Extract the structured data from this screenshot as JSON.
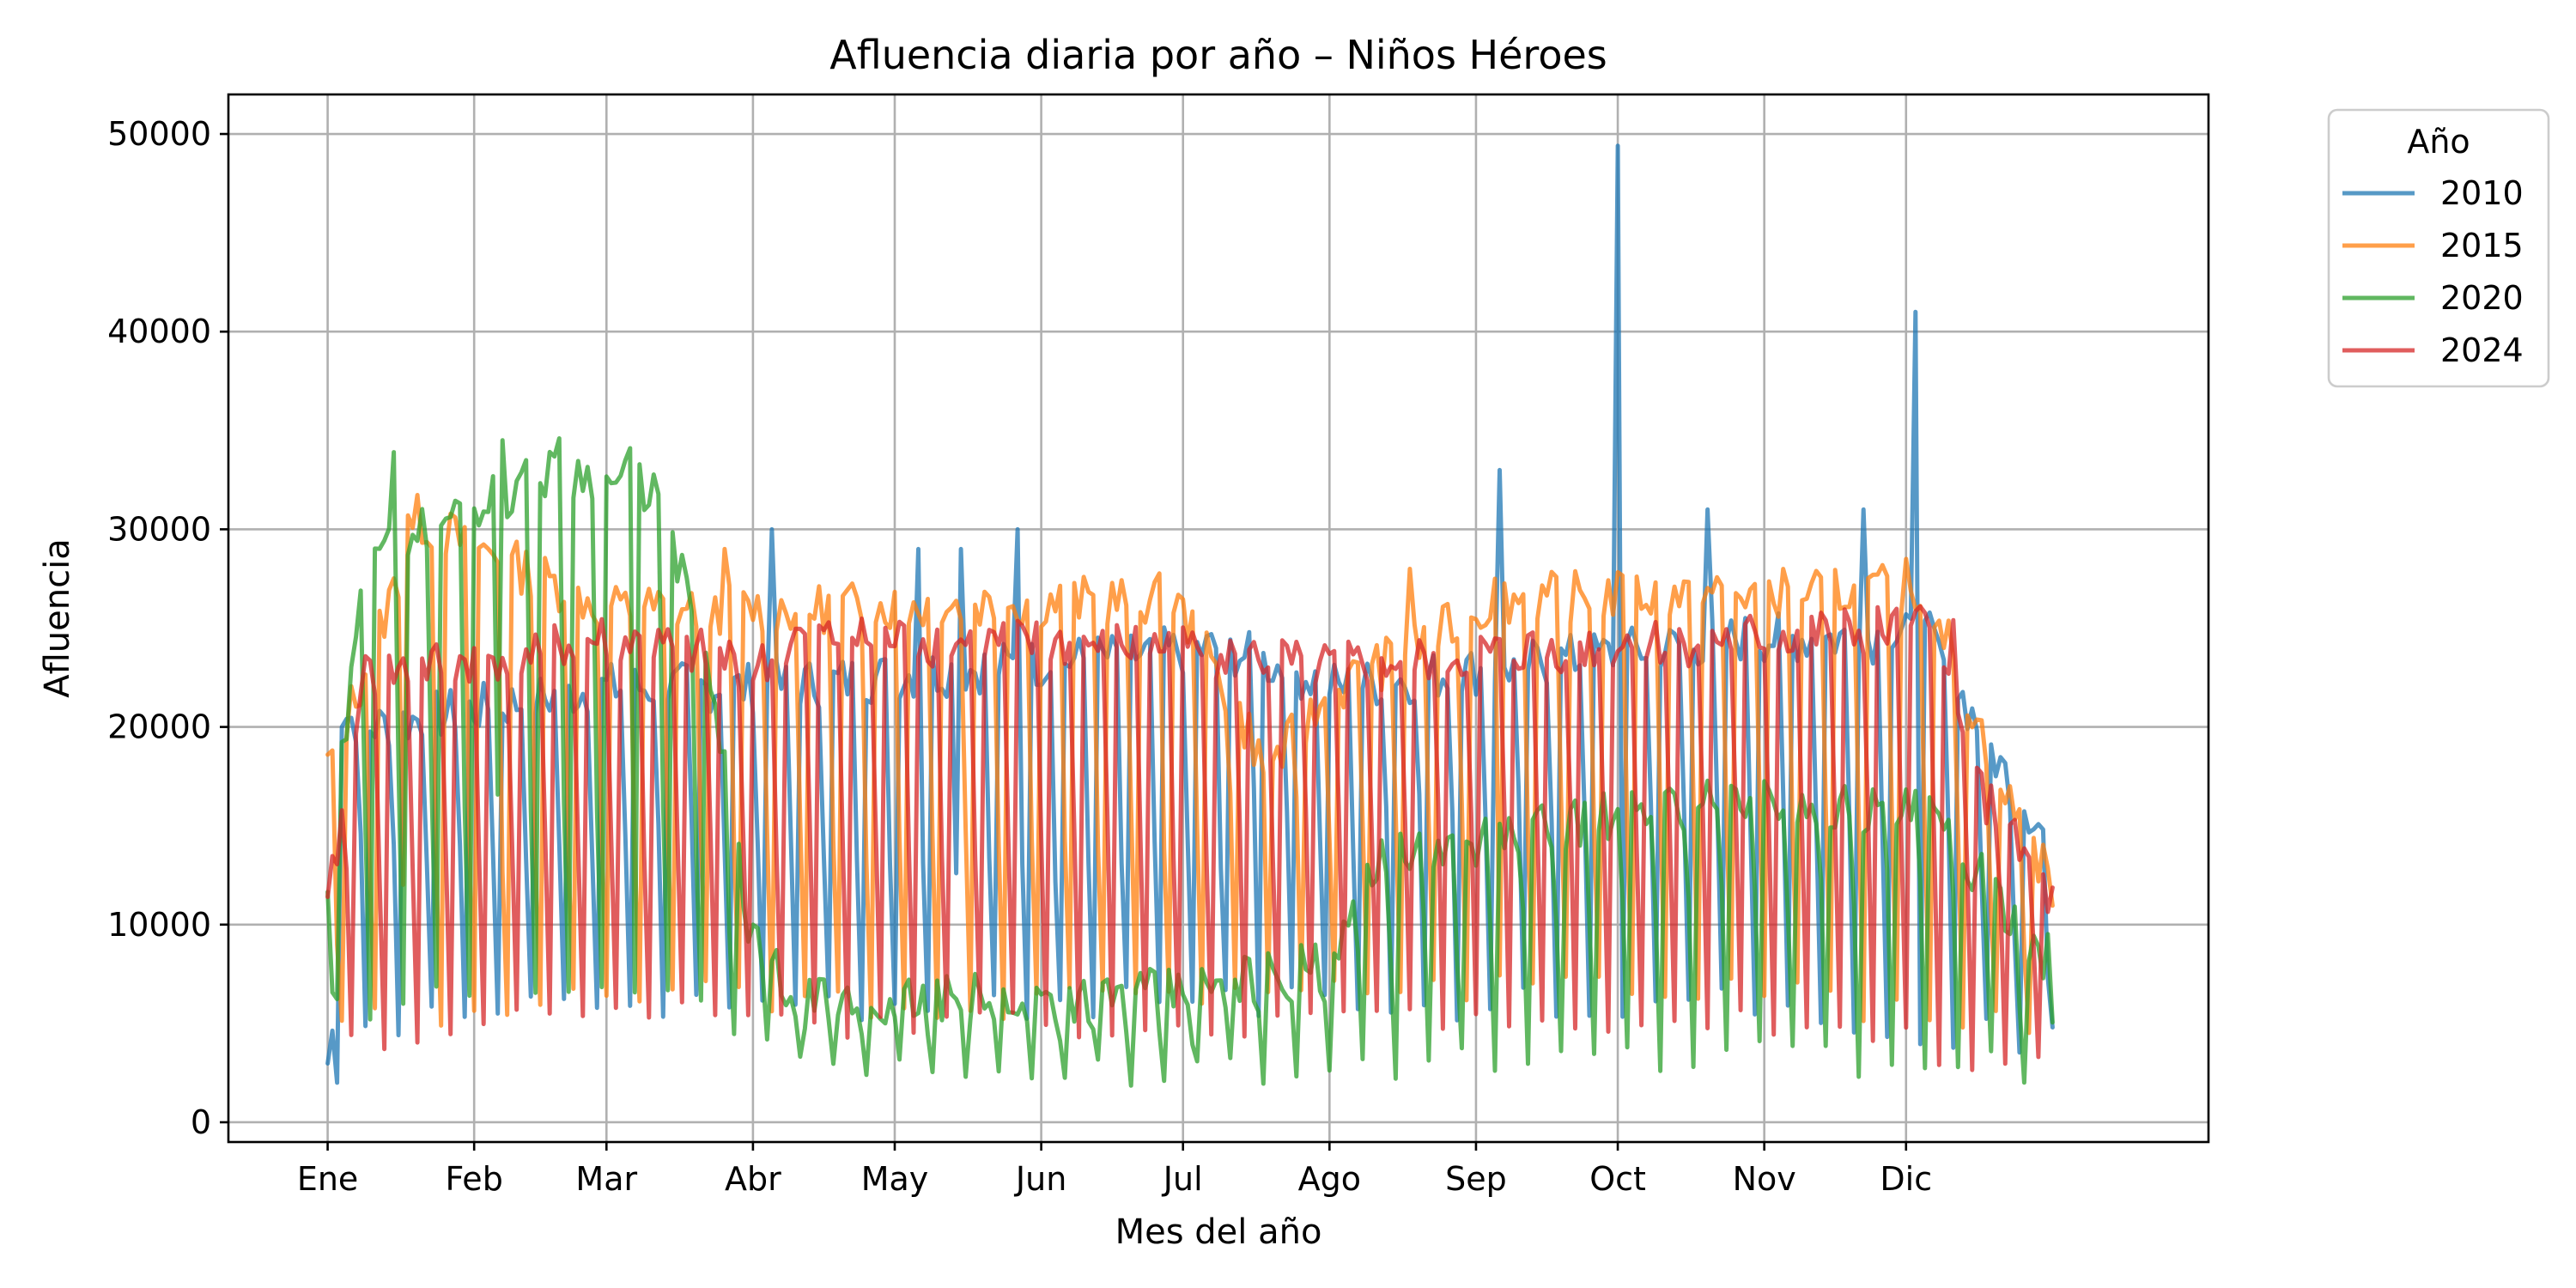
{
  "chart_data": {
    "type": "line",
    "title": "Afluencia diaria por año – Niños Héroes",
    "xlabel": "Mes del año",
    "ylabel": "Afluencia",
    "x_unit": "day_of_year",
    "xlim": [
      -20,
      399
    ],
    "ylim": [
      -1000,
      52000
    ],
    "grid": true,
    "legend": {
      "title": "Año",
      "position": "outside-top-right"
    },
    "x_ticks": [
      {
        "label": "Ene",
        "value": 1
      },
      {
        "label": "Feb",
        "value": 32
      },
      {
        "label": "Mar",
        "value": 60
      },
      {
        "label": "Abr",
        "value": 91
      },
      {
        "label": "May",
        "value": 121
      },
      {
        "label": "Jun",
        "value": 152
      },
      {
        "label": "Jul",
        "value": 182
      },
      {
        "label": "Ago",
        "value": 213
      },
      {
        "label": "Sep",
        "value": 244
      },
      {
        "label": "Oct",
        "value": 274
      },
      {
        "label": "Nov",
        "value": 305
      },
      {
        "label": "Dic",
        "value": 335
      }
    ],
    "y_ticks": [
      0,
      10000,
      20000,
      30000,
      40000,
      50000
    ],
    "series": [
      {
        "name": "2010",
        "color": "#1f77b4",
        "baseline": [
          [
            1,
            3000
          ],
          [
            4,
            13000
          ],
          [
            10,
            14000
          ],
          [
            60,
            14500
          ],
          [
            95,
            14500
          ],
          [
            140,
            13500
          ],
          [
            190,
            13000
          ],
          [
            200,
            18000
          ],
          [
            215,
            14000
          ],
          [
            225,
            16000
          ],
          [
            300,
            16000
          ],
          [
            330,
            15500
          ],
          [
            350,
            13000
          ],
          [
            362,
            8000
          ],
          [
            366,
            7000
          ]
        ],
        "weekday_peaks": [
          [
            1,
            21000
          ],
          [
            10,
            20000
          ],
          [
            60,
            22000
          ],
          [
            95,
            22000
          ],
          [
            140,
            23000
          ],
          [
            190,
            24000
          ],
          [
            215,
            22000
          ],
          [
            300,
            24500
          ],
          [
            340,
            24500
          ],
          [
            355,
            18000
          ],
          [
            366,
            14000
          ]
        ],
        "weekend_lows": [
          [
            1,
            4500
          ],
          [
            60,
            6000
          ],
          [
            140,
            6000
          ],
          [
            215,
            6000
          ],
          [
            300,
            6000
          ],
          [
            366,
            4000
          ]
        ],
        "spikes": [
          [
            3,
            2000
          ],
          [
            95,
            30000
          ],
          [
            126,
            29000
          ],
          [
            135,
            29000
          ],
          [
            147,
            30000
          ],
          [
            249,
            33000
          ],
          [
            274,
            49400
          ],
          [
            293,
            31000
          ],
          [
            326,
            31000
          ],
          [
            337,
            41000
          ]
        ]
      },
      {
        "name": "2015",
        "color": "#ff7f0e",
        "baseline": [
          [
            1,
            4000
          ],
          [
            5,
            12000
          ],
          [
            60,
            14000
          ],
          [
            100,
            14000
          ],
          [
            180,
            15000
          ],
          [
            195,
            18000
          ],
          [
            205,
            15500
          ],
          [
            215,
            15500
          ],
          [
            300,
            15500
          ],
          [
            345,
            14000
          ],
          [
            366,
            8000
          ]
        ],
        "weekday_peaks": [
          [
            1,
            18000
          ],
          [
            10,
            23500
          ],
          [
            20,
            30500
          ],
          [
            60,
            26000
          ],
          [
            100,
            26000
          ],
          [
            180,
            26500
          ],
          [
            200,
            18000
          ],
          [
            215,
            22000
          ],
          [
            250,
            26500
          ],
          [
            340,
            27000
          ],
          [
            355,
            17000
          ],
          [
            366,
            12000
          ]
        ],
        "weekend_lows": [
          [
            1,
            5000
          ],
          [
            60,
            6500
          ],
          [
            140,
            6000
          ],
          [
            215,
            7000
          ],
          [
            300,
            7000
          ],
          [
            366,
            4500
          ]
        ],
        "spikes": [
          [
            18,
            30700
          ],
          [
            85,
            29000
          ],
          [
            230,
            28000
          ],
          [
            248,
            27500
          ],
          [
            335,
            28500
          ]
        ]
      },
      {
        "name": "2020",
        "color": "#2ca02c",
        "baseline": [
          [
            1,
            4000
          ],
          [
            10,
            17000
          ],
          [
            70,
            17000
          ],
          [
            80,
            12000
          ],
          [
            88,
            8000
          ],
          [
            100,
            4500
          ],
          [
            180,
            4500
          ],
          [
            215,
            7000
          ],
          [
            230,
            9000
          ],
          [
            300,
            11000
          ],
          [
            340,
            12000
          ],
          [
            366,
            5000
          ]
        ],
        "weekday_peaks": [
          [
            1,
            12000
          ],
          [
            10,
            30000
          ],
          [
            20,
            30000
          ],
          [
            50,
            33000
          ],
          [
            70,
            32000
          ],
          [
            80,
            25000
          ],
          [
            90,
            10000
          ],
          [
            100,
            6000
          ],
          [
            180,
            6500
          ],
          [
            213,
            8000
          ],
          [
            220,
            13000
          ],
          [
            260,
            15000
          ],
          [
            300,
            16500
          ],
          [
            340,
            15500
          ],
          [
            366,
            8000
          ]
        ],
        "weekend_lows": [
          [
            1,
            6000
          ],
          [
            60,
            6500
          ],
          [
            90,
            5000
          ],
          [
            100,
            2500
          ],
          [
            180,
            2500
          ],
          [
            215,
            3000
          ],
          [
            300,
            3500
          ],
          [
            366,
            2500
          ]
        ],
        "spikes": [
          [
            15,
            33900
          ],
          [
            38,
            34500
          ],
          [
            50,
            34600
          ],
          [
            65,
            34100
          ]
        ]
      },
      {
        "name": "2024",
        "color": "#d62728",
        "baseline": [
          [
            1,
            4000
          ],
          [
            5,
            12500
          ],
          [
            60,
            14000
          ],
          [
            95,
            14500
          ],
          [
            180,
            14500
          ],
          [
            200,
            14000
          ],
          [
            212,
            15000
          ],
          [
            260,
            15000
          ],
          [
            340,
            15000
          ],
          [
            355,
            12000
          ],
          [
            366,
            7000
          ]
        ],
        "weekday_peaks": [
          [
            1,
            10500
          ],
          [
            8,
            22500
          ],
          [
            60,
            24500
          ],
          [
            95,
            23000
          ],
          [
            100,
            24500
          ],
          [
            180,
            24000
          ],
          [
            212,
            23000
          ],
          [
            260,
            24000
          ],
          [
            340,
            25000
          ],
          [
            350,
            17000
          ],
          [
            366,
            11000
          ]
        ],
        "weekend_lows": [
          [
            1,
            4000
          ],
          [
            60,
            5500
          ],
          [
            140,
            5000
          ],
          [
            215,
            5000
          ],
          [
            300,
            5000
          ],
          [
            366,
            3000
          ]
        ],
        "spikes": [
          [
            345,
            25400
          ]
        ]
      }
    ]
  }
}
